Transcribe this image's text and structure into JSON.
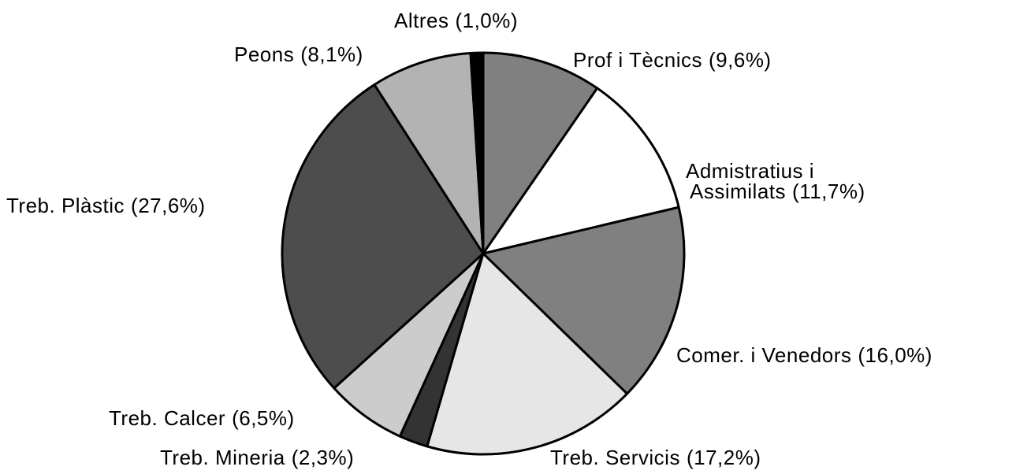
{
  "chart_data": {
    "type": "pie",
    "categories": [
      "Prof i Tècnics",
      "Admistratius i\nAssimilats",
      "Comer. i Venedors",
      "Treb. Servicis",
      "Treb. Mineria",
      "Treb. Calcer",
      "Treb. Plàstic",
      "Peons",
      "Altres"
    ],
    "values": [
      9.6,
      11.7,
      16.0,
      17.2,
      2.3,
      6.5,
      27.6,
      8.1,
      1.0
    ],
    "value_labels": [
      "(9,6%)",
      "(11,7%)",
      "(16,0%)",
      "(17,2%)",
      "(2,3%)",
      "(6,5%)",
      "(27,6%)",
      "(8,1%)",
      "(1,0%)"
    ],
    "colors": [
      "#808080",
      "#ffffff",
      "#808080",
      "#e6e6e6",
      "#333333",
      "#cccccc",
      "#4d4d4d",
      "#b3b3b3",
      "#000000"
    ]
  }
}
